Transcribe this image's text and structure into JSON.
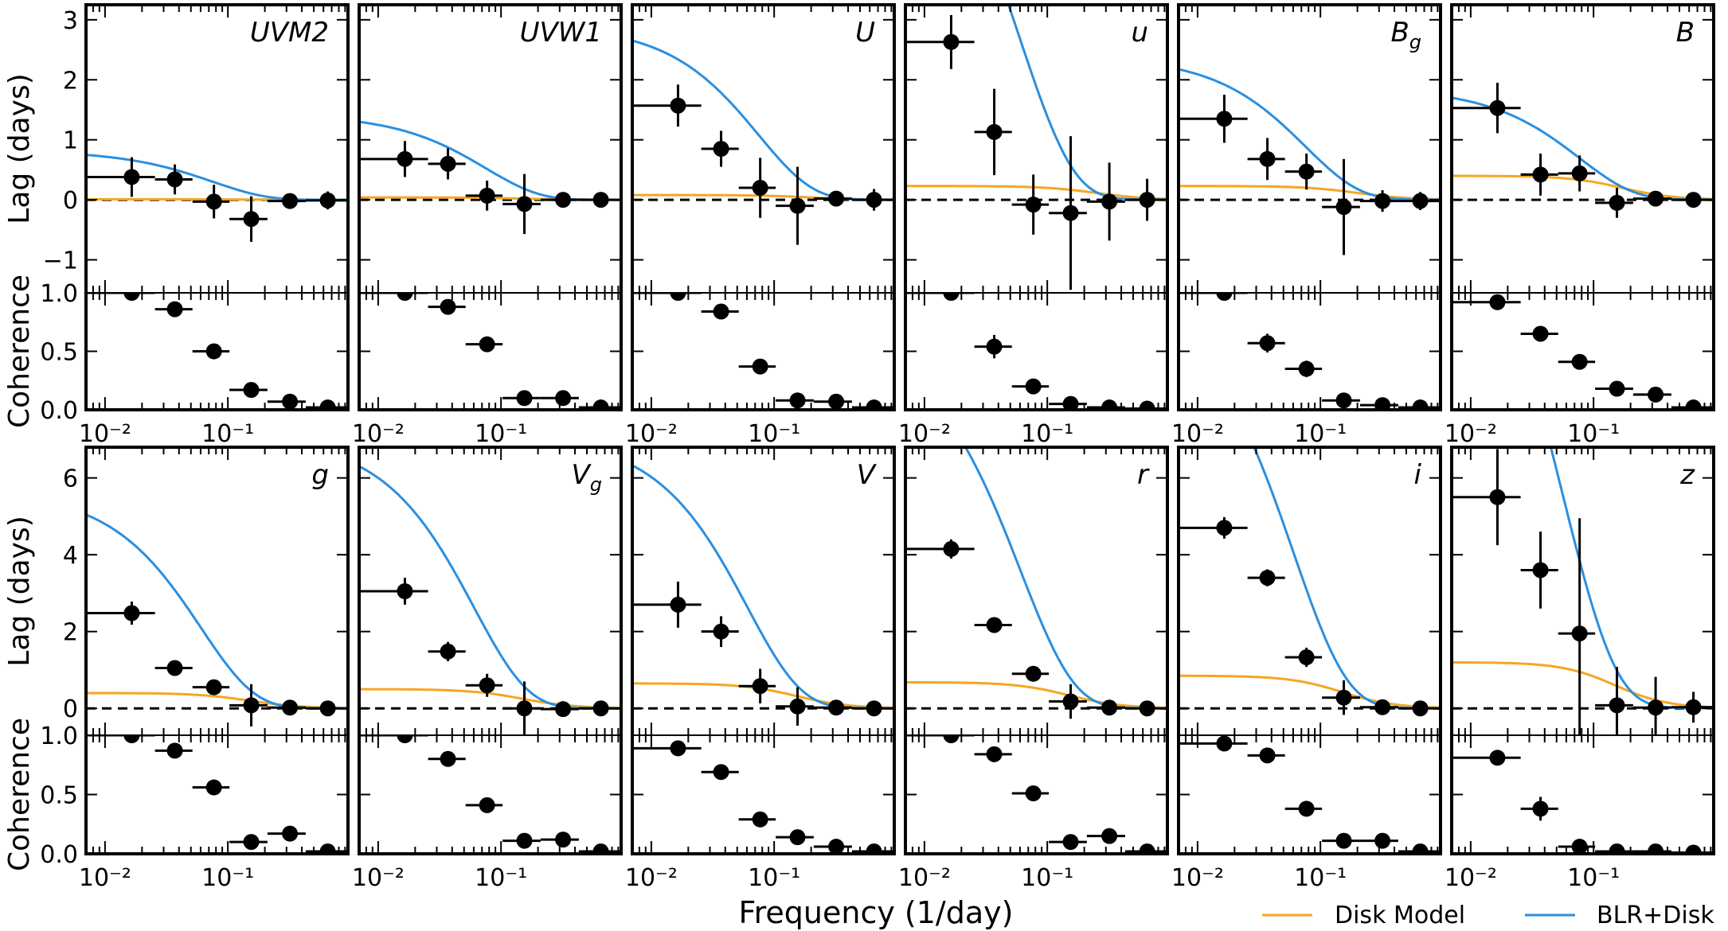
{
  "figure": {
    "xlabel": "Frequency (1/day)",
    "legend": [
      {
        "label": "Disk Model",
        "color": "#f5a623"
      },
      {
        "label": "BLR+Disk",
        "color": "#2a8fe0"
      }
    ],
    "colors": {
      "disk": "#f5a623",
      "blr": "#2a8fe0",
      "points": "#000000"
    },
    "xtick_labels": [
      "10⁻²",
      "10⁻¹"
    ]
  },
  "chart_data": {
    "type": "scatter",
    "xscale": "log",
    "xlim": [
      0.007,
      0.95
    ],
    "xlabel": "Frequency (1/day)",
    "freq_bins": [
      {
        "center": 0.0165,
        "lo": 0.0072,
        "hi": 0.0255
      },
      {
        "center": 0.037,
        "lo": 0.0255,
        "hi": 0.0515
      },
      {
        "center": 0.077,
        "lo": 0.0515,
        "hi": 0.103
      },
      {
        "center": 0.155,
        "lo": 0.103,
        "hi": 0.21
      },
      {
        "center": 0.32,
        "lo": 0.21,
        "hi": 0.43
      },
      {
        "center": 0.65,
        "lo": 0.43,
        "hi": 0.93
      }
    ],
    "rows": [
      {
        "lag_ylabel": "Lag (days)",
        "coh_ylabel": "Coherence",
        "lag_ylim": [
          -1.55,
          3.25
        ],
        "lag_ticks": [
          -1,
          0,
          1,
          2,
          3
        ],
        "lag_tick_labels": [
          "−1",
          "0",
          "1",
          "2",
          "3"
        ],
        "coh_ylim": [
          0,
          1.0
        ],
        "coh_ticks": [
          0,
          0.5,
          1.0
        ],
        "coh_tick_labels": [
          "0.0",
          "0.5",
          "1.0"
        ],
        "panels": [
          {
            "band": "UVM2",
            "band_sub": "",
            "lag": [
              0.38,
              0.34,
              -0.03,
              -0.32,
              -0.02,
              -0.01
            ],
            "lag_err": [
              0.33,
              0.25,
              0.28,
              0.38,
              0.1,
              0.15
            ],
            "coherence": [
              1.0,
              0.86,
              0.5,
              0.17,
              0.07,
              0.02
            ],
            "coh_err": [
              0.03,
              0.04,
              0.06,
              0.06,
              0.04,
              0.02
            ],
            "disk_amp": 0.01,
            "disk_f0": 0.15,
            "blr_model": [
              0.82,
              0.0,
              0.075
            ]
          },
          {
            "band": "UVW1",
            "band_sub": "",
            "lag": [
              0.68,
              0.6,
              0.07,
              -0.07,
              0.0,
              0.0
            ],
            "lag_err": [
              0.3,
              0.26,
              0.25,
              0.5,
              0.08,
              0.1
            ],
            "coherence": [
              1.0,
              0.88,
              0.56,
              0.1,
              0.1,
              0.02
            ],
            "coh_err": [
              0.03,
              0.04,
              0.06,
              0.04,
              0.04,
              0.02
            ],
            "disk_amp": 0.04,
            "disk_f0": 0.15,
            "blr_model": [
              1.42,
              0.0,
              0.075
            ]
          },
          {
            "band": "U",
            "band_sub": "",
            "lag": [
              1.57,
              0.85,
              0.2,
              -0.1,
              0.02,
              0.0
            ],
            "lag_err": [
              0.35,
              0.3,
              0.5,
              0.65,
              0.12,
              0.18
            ],
            "coherence": [
              1.0,
              0.84,
              0.37,
              0.08,
              0.07,
              0.02
            ],
            "coh_err": [
              0.03,
              0.04,
              0.06,
              0.04,
              0.04,
              0.02
            ],
            "disk_amp": 0.08,
            "disk_f0": 0.2,
            "blr_model": [
              2.9,
              0.0,
              0.075
            ]
          },
          {
            "band": "u",
            "band_sub": "",
            "lag": [
              2.63,
              1.13,
              -0.08,
              -0.22,
              -0.03,
              0.0
            ],
            "lag_err": [
              0.45,
              0.72,
              0.5,
              1.28,
              0.65,
              0.35
            ],
            "coherence": [
              1.0,
              0.54,
              0.2,
              0.05,
              0.02,
              0.01
            ],
            "coh_err": [
              0.03,
              0.1,
              0.06,
              0.03,
              0.02,
              0.01
            ],
            "disk_amp": 0.23,
            "disk_f0": 0.25,
            "blr_model": [
              7.2,
              0.0,
              0.06
            ]
          },
          {
            "band": "B",
            "band_sub": "g",
            "lag": [
              1.35,
              0.68,
              0.47,
              -0.12,
              -0.02,
              -0.02
            ],
            "lag_err": [
              0.4,
              0.35,
              0.3,
              0.8,
              0.18,
              0.15
            ],
            "coherence": [
              1.0,
              0.57,
              0.35,
              0.08,
              0.04,
              0.02
            ],
            "coh_err": [
              0.03,
              0.08,
              0.07,
              0.04,
              0.03,
              0.02
            ],
            "disk_amp": 0.23,
            "disk_f0": 0.2,
            "blr_model": [
              2.35,
              0.0,
              0.075
            ]
          },
          {
            "band": "B",
            "band_sub": "",
            "lag": [
              1.53,
              0.42,
              0.44,
              -0.05,
              0.02,
              0.0
            ],
            "lag_err": [
              0.42,
              0.35,
              0.3,
              0.25,
              0.08,
              0.08
            ],
            "coherence": [
              0.92,
              0.65,
              0.41,
              0.18,
              0.13,
              0.02
            ],
            "coh_err": [
              0.03,
              0.05,
              0.06,
              0.06,
              0.05,
              0.02
            ],
            "disk_amp": 0.4,
            "disk_f0": 0.17,
            "blr_model": [
              1.8,
              0.0,
              0.075
            ]
          }
        ]
      },
      {
        "lag_ylabel": "Lag (days)",
        "coh_ylabel": "Coherence",
        "lag_ylim": [
          -0.7,
          6.8
        ],
        "lag_ticks": [
          0,
          2,
          4,
          6
        ],
        "lag_tick_labels": [
          "0",
          "2",
          "4",
          "6"
        ],
        "coh_ylim": [
          0,
          1.0
        ],
        "coh_ticks": [
          0,
          0.5,
          1.0
        ],
        "coh_tick_labels": [
          "0.0",
          "0.5",
          "1.0"
        ],
        "panels": [
          {
            "band": "g",
            "band_sub": "",
            "lag": [
              2.48,
              1.05,
              0.55,
              0.08,
              0.02,
              0.0
            ],
            "lag_err": [
              0.3,
              0.2,
              0.2,
              0.55,
              0.12,
              0.15
            ],
            "coherence": [
              1.0,
              0.87,
              0.56,
              0.1,
              0.17,
              0.02
            ],
            "coh_err": [
              0.03,
              0.04,
              0.05,
              0.04,
              0.04,
              0.02
            ],
            "disk_amp": 0.4,
            "disk_f0": 0.15,
            "blr_model": [
              5.6,
              0.0,
              0.06
            ]
          },
          {
            "band": "V",
            "band_sub": "g",
            "lag": [
              3.05,
              1.48,
              0.6,
              0.0,
              -0.02,
              0.0
            ],
            "lag_err": [
              0.35,
              0.25,
              0.3,
              0.7,
              0.12,
              0.15
            ],
            "coherence": [
              1.0,
              0.8,
              0.41,
              0.11,
              0.12,
              0.02
            ],
            "coh_err": [
              0.03,
              0.04,
              0.06,
              0.05,
              0.05,
              0.02
            ],
            "disk_amp": 0.5,
            "disk_f0": 0.15,
            "blr_model": [
              7.0,
              0.0,
              0.06
            ]
          },
          {
            "band": "V",
            "band_sub": "",
            "lag": [
              2.7,
              2.0,
              0.58,
              0.05,
              0.02,
              0.0
            ],
            "lag_err": [
              0.6,
              0.4,
              0.45,
              0.5,
              0.1,
              0.15
            ],
            "coherence": [
              0.89,
              0.69,
              0.29,
              0.14,
              0.06,
              0.02
            ],
            "coh_err": [
              0.03,
              0.05,
              0.06,
              0.06,
              0.03,
              0.02
            ],
            "disk_amp": 0.65,
            "disk_f0": 0.15,
            "blr_model": [
              7.0,
              0.0,
              0.06
            ]
          },
          {
            "band": "r",
            "band_sub": "",
            "lag": [
              4.15,
              2.17,
              0.9,
              0.18,
              0.02,
              0.0
            ],
            "lag_err": [
              0.25,
              0.2,
              0.2,
              0.45,
              0.1,
              0.12
            ],
            "coherence": [
              1.0,
              0.84,
              0.51,
              0.1,
              0.15,
              0.02
            ],
            "coh_err": [
              0.03,
              0.04,
              0.05,
              0.04,
              0.04,
              0.02
            ],
            "disk_amp": 0.68,
            "disk_f0": 0.15,
            "blr_model": [
              9.6,
              0.0,
              0.06
            ]
          },
          {
            "band": "i",
            "band_sub": "",
            "lag": [
              4.7,
              3.4,
              1.33,
              0.28,
              0.03,
              0.0
            ],
            "lag_err": [
              0.28,
              0.22,
              0.25,
              0.45,
              0.12,
              0.15
            ],
            "coherence": [
              0.93,
              0.83,
              0.38,
              0.11,
              0.11,
              0.02
            ],
            "coh_err": [
              0.03,
              0.04,
              0.06,
              0.04,
              0.04,
              0.02
            ],
            "disk_amp": 0.85,
            "disk_f0": 0.15,
            "blr_model": [
              10.8,
              0.0,
              0.06
            ]
          },
          {
            "band": "z",
            "band_sub": "",
            "lag": [
              5.5,
              3.6,
              1.95,
              0.08,
              0.02,
              0.03
            ],
            "lag_err": [
              1.25,
              1.0,
              3.0,
              1.0,
              0.8,
              0.4
            ],
            "coherence": [
              0.81,
              0.38,
              0.06,
              0.02,
              0.02,
              0.01
            ],
            "coh_err": [
              0.03,
              0.1,
              0.04,
              0.02,
              0.02,
              0.01
            ],
            "disk_amp": 1.2,
            "disk_f0": 0.15,
            "blr_model": [
              15.0,
              0.0,
              0.055
            ]
          }
        ]
      }
    ]
  }
}
